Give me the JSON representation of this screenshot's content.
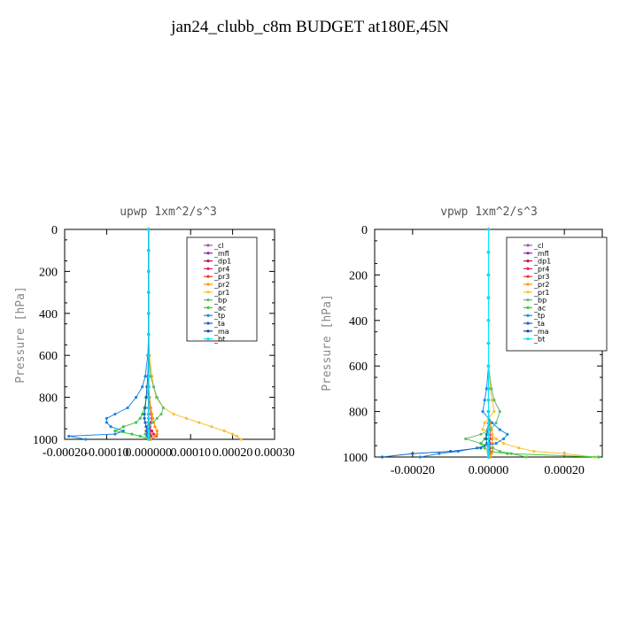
{
  "figure": {
    "title": "jan24_clubb_c8m  BUDGET at180E,45N"
  },
  "series_styles": [
    {
      "name": "_cl",
      "color": "#9b59b6"
    },
    {
      "name": "_mfl",
      "color": "#8e24aa"
    },
    {
      "name": "_dp1",
      "color": "#b0186b"
    },
    {
      "name": "_pr4",
      "color": "#e91e63"
    },
    {
      "name": "_pr3",
      "color": "#e53935"
    },
    {
      "name": "_pr2",
      "color": "#ff9800"
    },
    {
      "name": "_pr1",
      "color": "#fbc02d"
    },
    {
      "name": "_bp",
      "color": "#66bb6a"
    },
    {
      "name": "_ac",
      "color": "#33cc33"
    },
    {
      "name": "_tp",
      "color": "#1e88e5"
    },
    {
      "name": "_ta",
      "color": "#1565c0"
    },
    {
      "name": "_ma",
      "color": "#0d47a1"
    },
    {
      "name": "_bt",
      "color": "#00e5ff"
    }
  ],
  "chart_data": [
    {
      "type": "line",
      "title": "upwp   1xm^2/s^3",
      "ylabel": "Pressure [hPa]",
      "xlim": [
        -0.0002,
        0.0003
      ],
      "ylim": [
        1000,
        0
      ],
      "xticks": [
        -0.0002,
        -0.0001,
        0.0,
        0.0001,
        0.0002,
        0.0003
      ],
      "xtick_labels": [
        "-0.00020",
        "-0.00010",
        "0.000000",
        "0.00010",
        "0.00020",
        "0.00030"
      ],
      "yticks": [
        0,
        200,
        400,
        600,
        800,
        1000
      ],
      "ytick_labels": [
        "0",
        "200",
        "400",
        "600",
        "800",
        "1000"
      ],
      "legend_position": "top-right",
      "pressure": [
        0,
        100,
        200,
        300,
        400,
        500,
        600,
        700,
        750,
        800,
        850,
        880,
        900,
        920,
        940,
        960,
        975,
        985,
        1000
      ],
      "series": [
        {
          "name": "_cl",
          "values": [
            0,
            0,
            0,
            0,
            0,
            0,
            0,
            0,
            0,
            0,
            0,
            0,
            0,
            0,
            0,
            0,
            0,
            0,
            0
          ]
        },
        {
          "name": "_mfl",
          "values": [
            0,
            0,
            0,
            0,
            0,
            0,
            0,
            0,
            0,
            0,
            0,
            0,
            0,
            0,
            0,
            0,
            0,
            0,
            0
          ]
        },
        {
          "name": "_dp1",
          "values": [
            0,
            0,
            0,
            0,
            0,
            0,
            0,
            0,
            0,
            0,
            0,
            0,
            0,
            0,
            3e-06,
            6e-06,
            4e-06,
            3e-06,
            0
          ]
        },
        {
          "name": "_pr4",
          "values": [
            0,
            0,
            0,
            0,
            0,
            0,
            0,
            0,
            0,
            2e-06,
            4e-06,
            6e-06,
            8e-06,
            5e-06,
            -3e-06,
            8e-06,
            1.2e-05,
            1.8e-05,
            5e-06
          ]
        },
        {
          "name": "_pr3",
          "values": [
            0,
            0,
            0,
            0,
            0,
            0,
            0,
            0,
            0,
            0,
            0,
            0,
            0,
            0,
            -3e-06,
            -6e-06,
            3e-06,
            6e-06,
            0
          ]
        },
        {
          "name": "_pr2",
          "values": [
            0,
            0,
            0,
            0,
            0,
            0,
            0,
            0,
            0,
            2e-06,
            5e-06,
            8e-06,
            1e-05,
            1.2e-05,
            1.5e-05,
            2e-05,
            2e-05,
            1.5e-05,
            5e-06
          ]
        },
        {
          "name": "_pr1",
          "values": [
            0,
            0,
            0,
            0,
            0,
            0,
            2e-06,
            8e-06,
            1.2e-05,
            1.8e-05,
            3.5e-05,
            6e-05,
            9e-05,
            0.00012,
            0.00015,
            0.00018,
            0.0002,
            0.00021,
            0.00022
          ]
        },
        {
          "name": "_bp",
          "values": [
            0,
            0,
            0,
            0,
            0,
            0,
            0,
            5e-06,
            1.2e-05,
            2e-05,
            3.5e-05,
            3e-05,
            2e-05,
            1e-05,
            0,
            -5e-06,
            -8e-06,
            -5e-06,
            0
          ]
        },
        {
          "name": "_ac",
          "values": [
            0,
            0,
            0,
            0,
            0,
            0,
            0,
            0,
            0,
            -5e-06,
            -1e-05,
            -1.5e-05,
            -2e-05,
            -3e-05,
            -6e-05,
            -8e-05,
            -4e-05,
            -2e-05,
            0
          ]
        },
        {
          "name": "_tp",
          "values": [
            0,
            0,
            0,
            0,
            0,
            0,
            -2e-06,
            -8e-06,
            -1.5e-05,
            -3e-05,
            -5e-05,
            -8e-05,
            -0.0001,
            -0.0001,
            -9e-05,
            -6e-05,
            -8e-05,
            -0.00019,
            -0.00015
          ]
        },
        {
          "name": "_ta",
          "values": [
            0,
            0,
            0,
            0,
            0,
            0,
            0,
            -2e-06,
            -4e-06,
            -6e-06,
            -8e-06,
            -1e-05,
            -1e-05,
            -8e-06,
            -6e-06,
            -4e-06,
            -3e-06,
            -2e-06,
            0
          ]
        },
        {
          "name": "_ma",
          "values": [
            0,
            0,
            0,
            0,
            0,
            0,
            0,
            0,
            0,
            0,
            0,
            0,
            0,
            0,
            0,
            0,
            0,
            0,
            0
          ]
        },
        {
          "name": "_bt",
          "values": [
            0,
            0,
            0,
            0,
            0,
            0,
            0,
            0,
            0,
            0,
            0,
            0,
            0,
            0,
            0,
            0,
            0,
            0,
            0
          ]
        }
      ]
    },
    {
      "type": "line",
      "title": "vpwp   1xm^2/s^3",
      "ylabel": "Pressure [hPa]",
      "xlim": [
        -0.0003,
        0.0003
      ],
      "ylim": [
        1000,
        0
      ],
      "xticks": [
        -0.0002,
        0.0,
        0.0002
      ],
      "xtick_labels": [
        "-0.00020",
        "0.00000",
        "0.00020"
      ],
      "yticks": [
        0,
        200,
        400,
        600,
        800,
        1000
      ],
      "ytick_labels": [
        "0",
        "200",
        "400",
        "600",
        "800",
        "1000"
      ],
      "legend_position": "top-right",
      "pressure": [
        0,
        100,
        200,
        300,
        400,
        500,
        600,
        700,
        750,
        800,
        850,
        880,
        900,
        920,
        940,
        960,
        975,
        985,
        1000
      ],
      "series": [
        {
          "name": "_cl",
          "values": [
            0,
            0,
            0,
            0,
            0,
            0,
            0,
            0,
            0,
            0,
            0,
            0,
            0,
            0,
            0,
            0,
            0,
            0,
            0
          ]
        },
        {
          "name": "_mfl",
          "values": [
            0,
            0,
            0,
            0,
            0,
            0,
            0,
            0,
            0,
            0,
            0,
            0,
            0,
            0,
            0,
            0,
            0,
            0,
            0
          ]
        },
        {
          "name": "_dp1",
          "values": [
            0,
            0,
            0,
            0,
            0,
            0,
            0,
            0,
            0,
            0,
            0,
            0,
            0,
            0,
            3e-06,
            4e-06,
            3e-06,
            2e-06,
            0
          ]
        },
        {
          "name": "_pr4",
          "values": [
            0,
            0,
            0,
            0,
            0,
            0,
            0,
            0,
            0,
            0,
            2e-06,
            4e-06,
            5e-06,
            4e-06,
            3e-06,
            3e-06,
            2e-06,
            2e-06,
            0
          ]
        },
        {
          "name": "_pr3",
          "values": [
            0,
            0,
            0,
            0,
            0,
            0,
            0,
            0,
            0,
            0,
            0,
            0,
            0,
            0,
            0,
            0,
            0,
            0,
            0
          ]
        },
        {
          "name": "_pr2",
          "values": [
            0,
            0,
            0,
            0,
            0,
            0,
            0,
            0,
            0,
            0,
            5e-06,
            8e-06,
            1e-05,
            1e-05,
            1e-05,
            1.2e-05,
            1e-05,
            8e-06,
            5e-06
          ]
        },
        {
          "name": "_pr1",
          "values": [
            0,
            0,
            0,
            0,
            0,
            0,
            0,
            5e-06,
            1e-05,
            1.5e-05,
            -1e-05,
            -1.5e-05,
            1e-05,
            2e-05,
            4e-05,
            8e-05,
            0.00012,
            0.0002,
            0.00028
          ]
        },
        {
          "name": "_bp",
          "values": [
            0,
            0,
            0,
            0,
            0,
            0,
            0,
            8e-06,
            1.5e-05,
            3e-05,
            2e-05,
            5e-06,
            -2e-05,
            -6e-05,
            -2e-05,
            1e-05,
            3e-05,
            6e-05,
            0.0001
          ]
        },
        {
          "name": "_ac",
          "values": [
            0,
            0,
            0,
            0,
            0,
            0,
            0,
            0,
            0,
            0,
            0,
            0,
            -5e-06,
            -1e-05,
            -2e-05,
            -1e-05,
            0,
            5e-05,
            0.00029
          ]
        },
        {
          "name": "_tp",
          "values": [
            0,
            0,
            0,
            0,
            0,
            0,
            0,
            -5e-06,
            -1e-05,
            -1.5e-05,
            1e-05,
            3e-05,
            5e-05,
            4e-05,
            2e-05,
            -3e-05,
            -8e-05,
            -0.00013,
            -0.00018
          ]
        },
        {
          "name": "_ta",
          "values": [
            0,
            0,
            0,
            0,
            0,
            0,
            0,
            0,
            0,
            0,
            0,
            -2e-06,
            -4e-06,
            -6e-06,
            -4e-06,
            -2e-05,
            -0.0001,
            -0.0002,
            -0.00028
          ]
        },
        {
          "name": "_ma",
          "values": [
            0,
            0,
            0,
            0,
            0,
            0,
            0,
            0,
            0,
            0,
            0,
            0,
            0,
            0,
            0,
            0,
            0,
            0,
            0
          ]
        },
        {
          "name": "_bt",
          "values": [
            0,
            0,
            0,
            0,
            0,
            0,
            0,
            0,
            0,
            0,
            0,
            0,
            0,
            0,
            0,
            0,
            0,
            0,
            0
          ]
        }
      ]
    }
  ]
}
